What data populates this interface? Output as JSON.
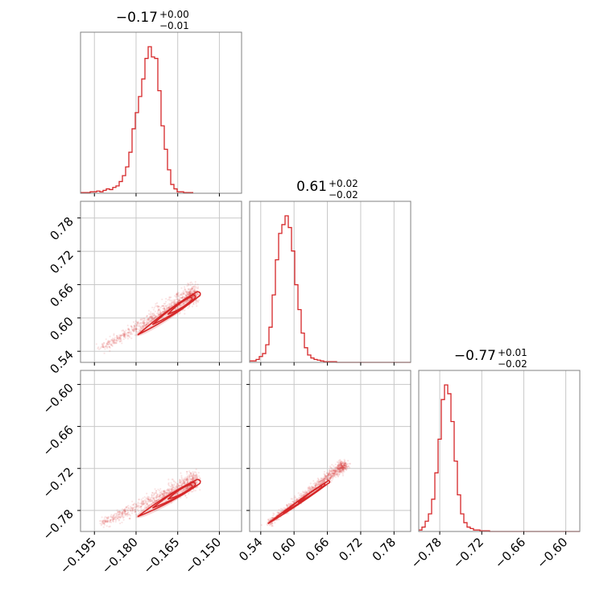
{
  "chart_data": {
    "type": "corner",
    "color": "#d62728",
    "panel_background": "#ffffff",
    "grid": true,
    "parameters": [
      {
        "title": {
          "main": "−0.17",
          "sup": "+0.00",
          "sub": "−0.01"
        },
        "range": [
          -0.2,
          -0.142
        ],
        "ticks": [
          -0.195,
          -0.18,
          -0.165,
          -0.15
        ],
        "tick_labels": [
          "−0.195",
          "−0.180",
          "−0.165",
          "−0.150"
        ],
        "histogram": {
          "edges_start": -0.2,
          "bin_width": 0.00116,
          "counts": [
            0.5,
            0.5,
            0.5,
            1,
            1,
            1.5,
            1,
            2,
            3,
            2.5,
            4,
            5,
            8,
            12,
            18,
            28,
            44,
            55,
            66,
            78,
            92,
            100,
            93,
            92,
            70,
            46,
            30,
            16,
            6,
            3,
            1,
            1,
            0.5,
            0.5,
            0.5
          ]
        }
      },
      {
        "title": {
          "main": "0.61",
          "sup": "+0.02",
          "sub": "−0.02"
        },
        "range": [
          0.52,
          0.81
        ],
        "ticks": [
          0.54,
          0.6,
          0.66,
          0.72,
          0.78
        ],
        "tick_labels": [
          "0.54",
          "0.60",
          "0.66",
          "0.72",
          "0.78"
        ],
        "histogram": {
          "edges_start": 0.52,
          "bin_width": 0.0058,
          "counts": [
            1,
            1,
            2,
            4,
            6,
            12,
            24,
            46,
            70,
            88,
            94,
            100,
            92,
            76,
            53,
            36,
            20,
            10,
            5,
            3,
            2,
            1.5,
            1,
            0.5,
            0.5,
            0.5,
            0.5,
            0,
            0,
            0,
            0,
            0,
            0,
            0,
            0,
            0,
            0,
            0,
            0,
            0,
            0,
            0,
            0,
            0,
            0,
            0,
            0,
            0,
            0,
            0
          ]
        }
      },
      {
        "title": {
          "main": "−0.77",
          "sup": "+0.01",
          "sub": "−0.02"
        },
        "range": [
          -0.81,
          -0.58
        ],
        "ticks": [
          -0.78,
          -0.72,
          -0.66,
          -0.6
        ],
        "tick_labels": [
          "−0.78",
          "−0.72",
          "−0.66",
          "−0.60"
        ],
        "histogram": {
          "edges_start": -0.81,
          "bin_width": 0.0046,
          "counts": [
            1,
            3,
            7,
            12,
            22,
            40,
            63,
            90,
            100,
            94,
            75,
            48,
            25,
            12,
            6,
            3,
            2,
            1,
            1,
            0.5,
            0.5,
            0.5,
            0,
            0,
            0,
            0,
            0,
            0,
            0,
            0,
            0,
            0,
            0,
            0,
            0,
            0,
            0,
            0,
            0,
            0,
            0,
            0,
            0,
            0,
            0,
            0,
            0,
            0,
            0,
            0
          ]
        }
      }
    ],
    "pair_panels": [
      {
        "x": 0,
        "y": 1,
        "line_start": [
          -0.196,
          0.535
        ],
        "line_end": [
          -0.159,
          0.645
        ],
        "core": [
          [
            -0.18,
            0.568
          ],
          [
            -0.158,
            0.642
          ]
        ]
      },
      {
        "x": 0,
        "y": 2,
        "line_start": [
          -0.196,
          -0.805
        ],
        "line_end": [
          -0.159,
          -0.738
        ],
        "core": [
          [
            -0.18,
            -0.79
          ],
          [
            -0.158,
            -0.74
          ]
        ]
      },
      {
        "x": 1,
        "y": 2,
        "line_start": [
          0.538,
          -0.808
        ],
        "line_end": [
          0.69,
          -0.715
        ],
        "core": [
          [
            0.55,
            -0.8
          ],
          [
            0.66,
            -0.74
          ]
        ]
      }
    ]
  }
}
